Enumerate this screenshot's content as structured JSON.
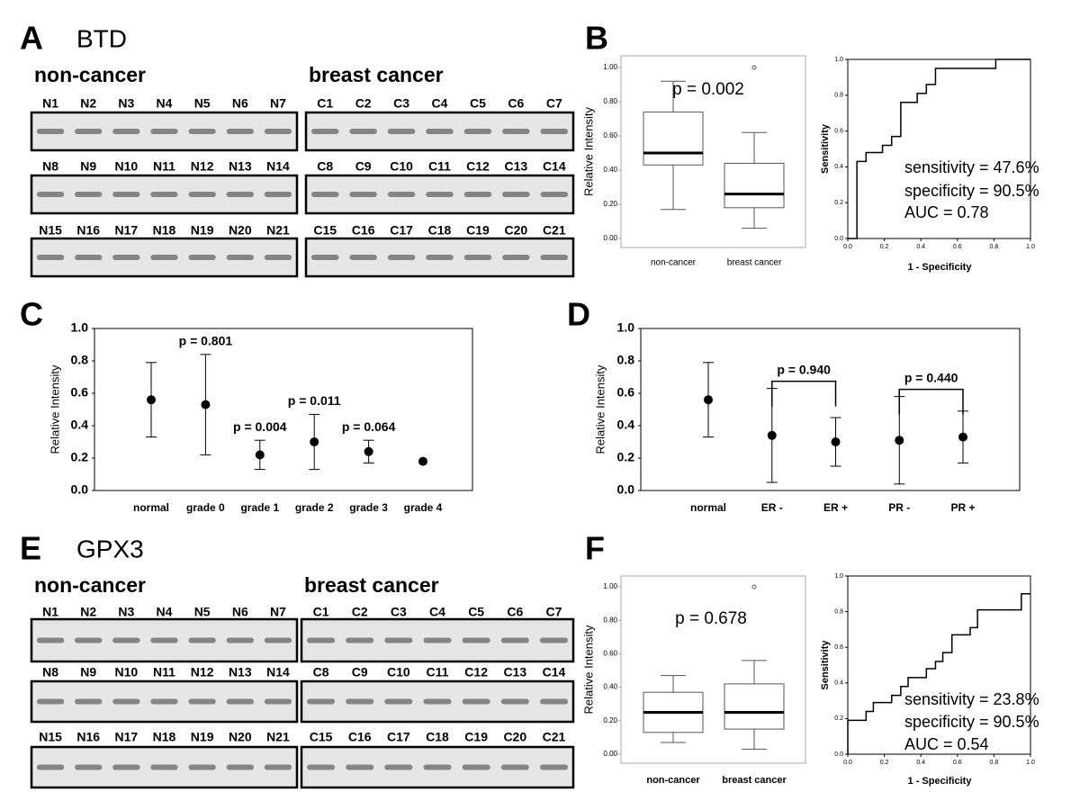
{
  "panel_labels": [
    "A",
    "B",
    "C",
    "D",
    "E",
    "F"
  ],
  "blots": [
    {
      "gene": "BTD",
      "groups": [
        {
          "title": "non-cancer",
          "lanes": [
            "N1",
            "N2",
            "N3",
            "N4",
            "N5",
            "N6",
            "N7",
            "N8",
            "N9",
            "N10",
            "N11",
            "N12",
            "N13",
            "N14",
            "N15",
            "N16",
            "N17",
            "N18",
            "N19",
            "N20",
            "N21"
          ]
        },
        {
          "title": "breast cancer",
          "lanes": [
            "C1",
            "C2",
            "C3",
            "C4",
            "C5",
            "C6",
            "C7",
            "C8",
            "C9",
            "C10",
            "C11",
            "C12",
            "C13",
            "C14",
            "C15",
            "C16",
            "C17",
            "C18",
            "C19",
            "C20",
            "C21"
          ]
        }
      ]
    },
    {
      "gene": "GPX3",
      "groups": [
        {
          "title": "non-cancer",
          "lanes": [
            "N1",
            "N2",
            "N3",
            "N4",
            "N5",
            "N6",
            "N7",
            "N8",
            "N9",
            "N10",
            "N11",
            "N12",
            "N13",
            "N14",
            "N15",
            "N16",
            "N17",
            "N18",
            "N19",
            "N20",
            "N21"
          ]
        },
        {
          "title": "breast cancer",
          "lanes": [
            "C1",
            "C2",
            "C3",
            "C4",
            "C5",
            "C6",
            "C7",
            "C8",
            "C9",
            "C10",
            "C11",
            "C12",
            "C13",
            "C14",
            "C15",
            "C16",
            "C17",
            "C18",
            "C19",
            "C20",
            "C21"
          ]
        }
      ]
    }
  ],
  "chart_data": [
    {
      "type": "box",
      "ylabel": "Relative Intensity",
      "categories": [
        "non-cancer",
        "breast cancer"
      ],
      "whisker_low": [
        0.17,
        0.06
      ],
      "q1": [
        0.43,
        0.18
      ],
      "median": [
        0.5,
        0.26
      ],
      "q3": [
        0.74,
        0.44
      ],
      "whisker_high": [
        0.92,
        0.62
      ],
      "outliers": [
        null,
        1.0
      ],
      "ylim": [
        0,
        1
      ],
      "yticks": [
        {
          "value": 0,
          "label": "0.00"
        },
        {
          "value": 0.2,
          "label": "0.20"
        },
        {
          "value": 0.4,
          "label": "0.40"
        },
        {
          "value": 0.6,
          "label": "0.60"
        },
        {
          "value": 0.8,
          "label": "0.80"
        },
        {
          "value": 1,
          "label": "1.00"
        }
      ],
      "annotation": "p = 0.002"
    },
    {
      "type": "line",
      "xlabel": "1 - Specificity",
      "ylabel": "Sensitivity",
      "x": [
        0,
        0.05,
        0.05,
        0.1,
        0.1,
        0.19,
        0.19,
        0.24,
        0.24,
        0.29,
        0.29,
        0.38,
        0.38,
        0.43,
        0.43,
        0.48,
        0.48,
        0.81,
        0.81,
        1
      ],
      "values": [
        0,
        0,
        0.43,
        0.43,
        0.48,
        0.48,
        0.52,
        0.52,
        0.57,
        0.57,
        0.76,
        0.76,
        0.81,
        0.81,
        0.86,
        0.86,
        0.95,
        0.95,
        1,
        1
      ],
      "xlim": [
        0,
        1
      ],
      "ylim": [
        0,
        1
      ],
      "xticks": [
        {
          "value": 0,
          "label": "0.0"
        },
        {
          "value": 0.2,
          "label": "0.2"
        },
        {
          "value": 0.4,
          "label": "0.4"
        },
        {
          "value": 0.6,
          "label": "0.6"
        },
        {
          "value": 0.8,
          "label": "0.8"
        },
        {
          "value": 1,
          "label": "1.0"
        }
      ],
      "yticks": [
        {
          "value": 0,
          "label": "0.0"
        },
        {
          "value": 0.2,
          "label": "0.2"
        },
        {
          "value": 0.4,
          "label": "0.4"
        },
        {
          "value": 0.6,
          "label": "0.6"
        },
        {
          "value": 0.8,
          "label": "0.8"
        },
        {
          "value": 1,
          "label": "1.0"
        }
      ],
      "annotations": [
        "sensitivity = 47.6%",
        "specificity = 90.5%",
        "AUC = 0.78"
      ]
    },
    {
      "type": "errorbar",
      "ylabel": "Relative Intensity",
      "categories": [
        "normal",
        "grade 0",
        "grade 1",
        "grade 2",
        "grade 3",
        "grade 4"
      ],
      "values": [
        0.56,
        0.53,
        0.22,
        0.3,
        0.24,
        0.18
      ],
      "errors": [
        0.23,
        0.31,
        0.09,
        0.17,
        0.07,
        null
      ],
      "p_values": [
        null,
        "p = 0.801",
        "p = 0.004",
        "p = 0.011",
        "p = 0.064",
        null
      ],
      "ylim": [
        0,
        1
      ],
      "yticks": [
        {
          "value": 0,
          "label": "0.0"
        },
        {
          "value": 0.2,
          "label": "0.2"
        },
        {
          "value": 0.4,
          "label": "0.4"
        },
        {
          "value": 0.6,
          "label": "0.6"
        },
        {
          "value": 0.8,
          "label": "0.8"
        },
        {
          "value": 1,
          "label": "1.0"
        }
      ]
    },
    {
      "type": "errorbar",
      "ylabel": "Relative Intensity",
      "categories": [
        "normal",
        "ER -",
        "ER +",
        "PR -",
        "PR +"
      ],
      "values": [
        0.56,
        0.34,
        0.3,
        0.31,
        0.33
      ],
      "errors": [
        0.23,
        0.29,
        0.15,
        0.27,
        0.16
      ],
      "brackets": [
        {
          "from": "ER -",
          "to": "ER +",
          "label": "p = 0.940"
        },
        {
          "from": "PR -",
          "to": "PR +",
          "label": "p = 0.440"
        }
      ],
      "ylim": [
        0,
        1
      ],
      "yticks": [
        {
          "value": 0,
          "label": "0.0"
        },
        {
          "value": 0.2,
          "label": "0.2"
        },
        {
          "value": 0.4,
          "label": "0.4"
        },
        {
          "value": 0.6,
          "label": "0.6"
        },
        {
          "value": 0.8,
          "label": "0.8"
        },
        {
          "value": 1,
          "label": "1.0"
        }
      ]
    },
    {
      "type": "box",
      "ylabel": "Relative Intensity",
      "categories": [
        "non-cancer",
        "breast cancer"
      ],
      "whisker_low": [
        0.07,
        0.03
      ],
      "q1": [
        0.13,
        0.15
      ],
      "median": [
        0.25,
        0.25
      ],
      "q3": [
        0.37,
        0.42
      ],
      "whisker_high": [
        0.47,
        0.56
      ],
      "outliers": [
        null,
        1.0
      ],
      "ylim": [
        0,
        1
      ],
      "yticks": [
        {
          "value": 0,
          "label": "0.00"
        },
        {
          "value": 0.2,
          "label": "0.20"
        },
        {
          "value": 0.4,
          "label": "0.40"
        },
        {
          "value": 0.6,
          "label": "0.60"
        },
        {
          "value": 0.8,
          "label": "0.80"
        },
        {
          "value": 1,
          "label": "1.00"
        }
      ],
      "annotation": "p = 0.678"
    },
    {
      "type": "line",
      "xlabel": "1 - Specificity",
      "ylabel": "Sensitivity",
      "x": [
        0,
        0,
        0.1,
        0.1,
        0.14,
        0.14,
        0.24,
        0.24,
        0.29,
        0.29,
        0.33,
        0.33,
        0.43,
        0.43,
        0.48,
        0.48,
        0.52,
        0.52,
        0.57,
        0.57,
        0.67,
        0.67,
        0.71,
        0.71,
        0.95,
        0.95,
        1
      ],
      "values": [
        0,
        0.19,
        0.19,
        0.24,
        0.24,
        0.29,
        0.29,
        0.33,
        0.33,
        0.38,
        0.38,
        0.43,
        0.43,
        0.48,
        0.48,
        0.52,
        0.52,
        0.57,
        0.57,
        0.67,
        0.67,
        0.71,
        0.71,
        0.81,
        0.81,
        0.9,
        0.9
      ],
      "xlim": [
        0,
        1
      ],
      "ylim": [
        0,
        1
      ],
      "xticks": [
        {
          "value": 0,
          "label": "0.0"
        },
        {
          "value": 0.2,
          "label": "0.2"
        },
        {
          "value": 0.4,
          "label": "0.4"
        },
        {
          "value": 0.6,
          "label": "0.6"
        },
        {
          "value": 0.8,
          "label": "0.8"
        },
        {
          "value": 1,
          "label": "1.0"
        }
      ],
      "yticks": [
        {
          "value": 0,
          "label": "0.0"
        },
        {
          "value": 0.2,
          "label": "0.2"
        },
        {
          "value": 0.4,
          "label": "0.4"
        },
        {
          "value": 0.6,
          "label": "0.6"
        },
        {
          "value": 0.8,
          "label": "0.8"
        },
        {
          "value": 1,
          "label": "1.0"
        }
      ],
      "annotations": [
        "sensitivity = 23.8%",
        "specificity = 90.5%",
        "AUC = 0.54"
      ]
    }
  ]
}
